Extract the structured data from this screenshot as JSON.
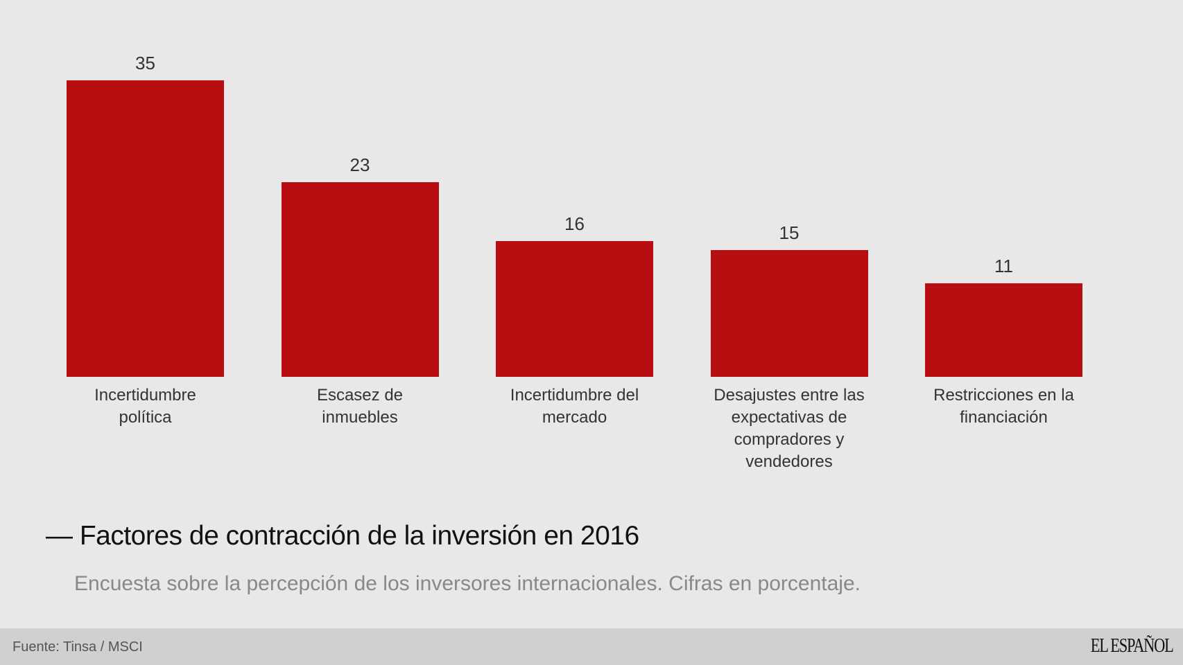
{
  "chart_data": {
    "type": "bar",
    "categories": [
      "Incertidumbre política",
      "Escasez de inmuebles",
      "Incertidumbre del mercado",
      "Desajustes entre las expectativas de compradores y vendedores",
      "Restricciones en la financiación"
    ],
    "values": [
      35,
      23,
      16,
      15,
      11
    ],
    "title": "— Factores de contracción de la inversión en 2016",
    "subtitle": "Encuesta sobre la percepción de los inversores internacionales. Cifras en porcentaje.",
    "ylim": [
      0,
      35
    ],
    "grid": false,
    "bar_color": "#b80d11"
  },
  "footer": {
    "source": "Fuente: Tinsa / MSCI",
    "logo": "EL ESPAÑOL"
  }
}
